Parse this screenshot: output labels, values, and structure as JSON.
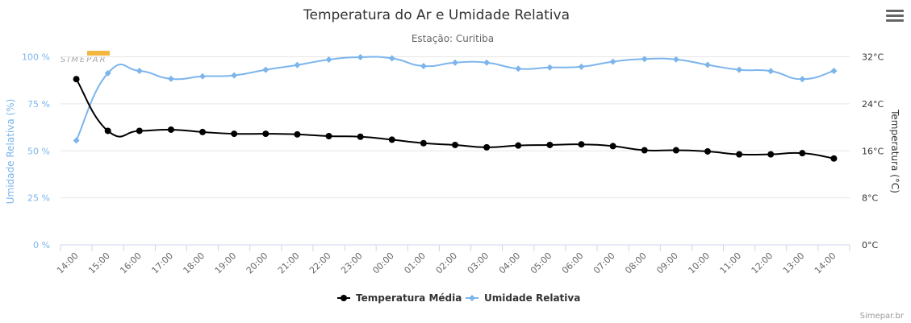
{
  "header": {
    "title": "Temperatura do Ar e Umidade Relativa",
    "subtitle": "Estação: Curitiba",
    "menu_icon": "hamburger-menu-icon"
  },
  "watermark": {
    "text": "SIMEPAR",
    "accent": "#f0a000"
  },
  "credits": "Simepar.br",
  "colors": {
    "temperature": "#000000",
    "humidity": "#7cb5ec",
    "grid": "#e6e6e6",
    "axis_line": "#ccd6eb"
  },
  "chart_data": {
    "type": "line",
    "title": "Temperatura do Ar e Umidade Relativa",
    "subtitle": "Estação: Curitiba",
    "categories": [
      "14:00",
      "15:00",
      "16:00",
      "17:00",
      "18:00",
      "19:00",
      "20:00",
      "21:00",
      "22:00",
      "23:00",
      "00:00",
      "01:00",
      "02:00",
      "03:00",
      "04:00",
      "05:00",
      "06:00",
      "07:00",
      "08:00",
      "09:00",
      "10:00",
      "11:00",
      "12:00",
      "13:00",
      "14:00"
    ],
    "y_left": {
      "title": "Umidade Relativa (%)",
      "range": [
        0,
        100
      ],
      "ticks": [
        0,
        25,
        50,
        75,
        100
      ],
      "tick_labels": [
        "0 %",
        "25 %",
        "50 %",
        "75 %",
        "100 %"
      ]
    },
    "y_right": {
      "title": "Temperatura (°C)",
      "range": [
        0,
        32
      ],
      "ticks": [
        0,
        8,
        16,
        24,
        32
      ],
      "tick_labels": [
        "0°C",
        "8°C",
        "16°C",
        "24°C",
        "32°C"
      ]
    },
    "grid": true,
    "legend": {
      "position": "bottom-center"
    },
    "series": [
      {
        "name": "Temperatura Média",
        "axis": "right",
        "color": "#000000",
        "marker": "circle",
        "values": [
          28.2,
          19.4,
          19.4,
          19.6,
          19.2,
          18.9,
          18.9,
          18.8,
          18.5,
          18.4,
          17.9,
          17.3,
          17.0,
          16.6,
          16.9,
          17.0,
          17.1,
          16.8,
          16.1,
          16.1,
          15.9,
          15.4,
          15.4,
          15.6,
          14.7
        ]
      },
      {
        "name": "Umidade Relativa",
        "axis": "left",
        "color": "#7cb5ec",
        "marker": "diamond",
        "values": [
          55.5,
          91.3,
          92.5,
          88.3,
          89.6,
          90.1,
          93.1,
          95.6,
          98.5,
          99.8,
          99.2,
          95.1,
          96.9,
          96.9,
          93.7,
          94.3,
          94.7,
          97.4,
          98.8,
          98.6,
          95.7,
          93.1,
          92.4,
          88.1,
          92.5
        ]
      }
    ]
  }
}
